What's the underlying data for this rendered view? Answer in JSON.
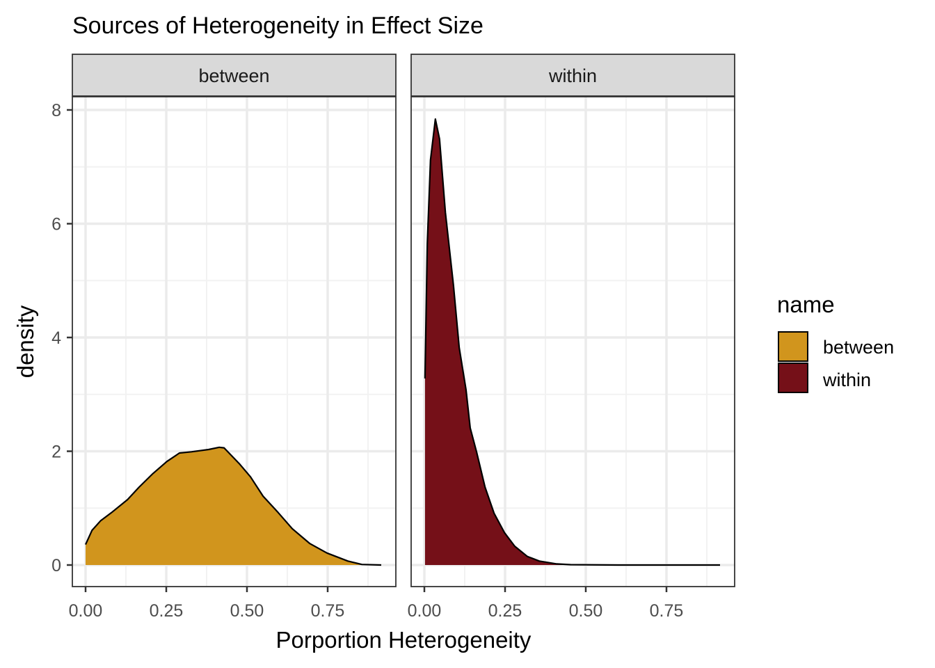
{
  "chart_data": {
    "type": "area",
    "title": "Sources of Heterogeneity in Effect Size",
    "xlabel": "Porportion Heterogeneity",
    "ylabel": "density",
    "xlim": [
      -0.04,
      0.96
    ],
    "ylim": [
      -0.38,
      8.22
    ],
    "x_ticks": [
      0.0,
      0.25,
      0.5,
      0.75
    ],
    "x_tick_labels": [
      "0.00",
      "0.25",
      "0.50",
      "0.75"
    ],
    "y_ticks": [
      0,
      2,
      4,
      6,
      8
    ],
    "y_tick_labels": [
      "0",
      "2",
      "4",
      "6",
      "8"
    ],
    "grid": true,
    "legend": {
      "title": "name",
      "position": "right",
      "entries": [
        {
          "label": "between",
          "color": "#D1951D"
        },
        {
          "label": "within",
          "color": "#751018"
        }
      ]
    },
    "facets": [
      {
        "label": "between",
        "color": "#D1951D",
        "x": [
          0.0,
          0.02,
          0.047,
          0.08,
          0.13,
          0.166,
          0.209,
          0.252,
          0.291,
          0.328,
          0.381,
          0.414,
          0.429,
          0.478,
          0.511,
          0.55,
          0.597,
          0.64,
          0.694,
          0.748,
          0.8125,
          0.856,
          0.916
        ],
        "y": [
          0.36,
          0.61,
          0.78,
          0.92,
          1.15,
          1.37,
          1.61,
          1.82,
          1.97,
          1.99,
          2.03,
          2.07,
          2.06,
          1.77,
          1.55,
          1.21,
          0.92,
          0.64,
          0.38,
          0.21,
          0.07,
          0.01,
          0.0
        ]
      },
      {
        "label": "within",
        "color": "#751018",
        "x": [
          0.002,
          0.009,
          0.019,
          0.034,
          0.047,
          0.065,
          0.09,
          0.108,
          0.129,
          0.142,
          0.162,
          0.188,
          0.216,
          0.248,
          0.28,
          0.319,
          0.356,
          0.41,
          0.453,
          0.6,
          0.75,
          0.916
        ],
        "y": [
          3.28,
          5.65,
          7.12,
          7.84,
          7.49,
          6.2,
          4.92,
          3.82,
          3.08,
          2.41,
          1.98,
          1.37,
          0.91,
          0.57,
          0.33,
          0.15,
          0.07,
          0.02,
          0.006,
          0.0,
          0.0,
          0.0
        ]
      }
    ]
  },
  "colors": {
    "strip_bg": "#D9D9D9",
    "grid_major": "#EBEBEB",
    "grid_minor": "#F2F2F2",
    "panel_border": "#333333"
  }
}
